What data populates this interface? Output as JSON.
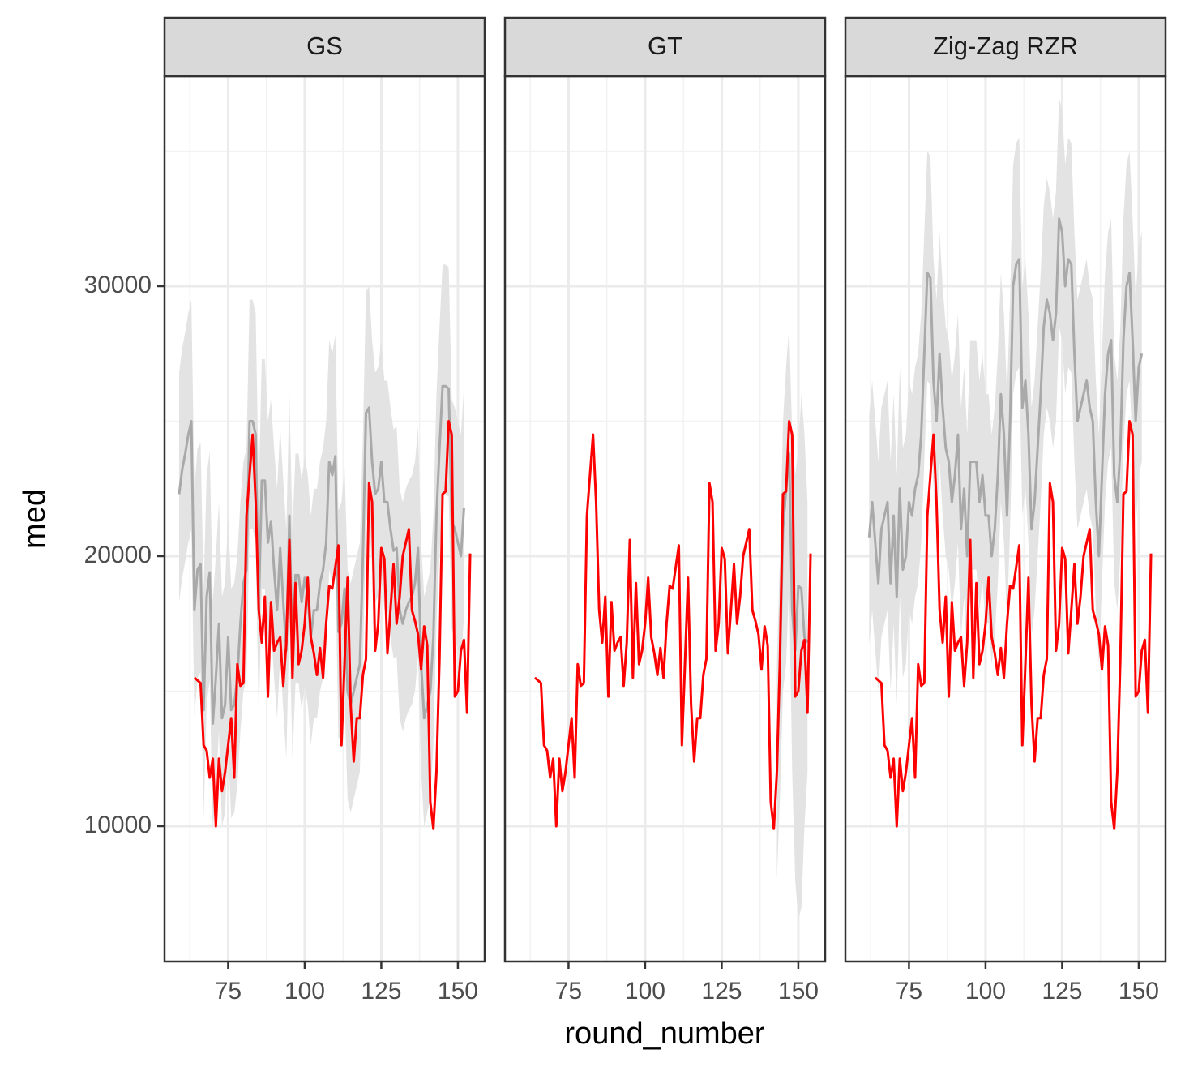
{
  "chart_data": {
    "type": "line",
    "x_label": "round_number",
    "y_label": "med",
    "xlim": [
      54.25,
      158.75
    ],
    "ylim": [
      4985,
      37778
    ],
    "xticks": [
      75,
      100,
      125,
      150
    ],
    "yticks": [
      10000,
      20000,
      30000
    ],
    "x_minor_grid": [
      62.5,
      87.5,
      112.5,
      137.5
    ],
    "y_minor_grid": [
      15000,
      25000,
      35000
    ],
    "grid": true,
    "ribbon_color": "#e3e3e3",
    "overlay": {
      "color": "#ff0000",
      "x": [
        64,
        65,
        66,
        67,
        68,
        69,
        70,
        71,
        72,
        73,
        74,
        75,
        76,
        77,
        78,
        79,
        80,
        81,
        82,
        83,
        84,
        85,
        86,
        87,
        88,
        89,
        90,
        91,
        92,
        93,
        94,
        95,
        96,
        97,
        98,
        99,
        100,
        101,
        102,
        103,
        104,
        105,
        106,
        107,
        108,
        109,
        110,
        111,
        112,
        113,
        114,
        115,
        116,
        117,
        118,
        119,
        120,
        121,
        122,
        123,
        124,
        125,
        126,
        127,
        128,
        129,
        130,
        131,
        132,
        133,
        134,
        135,
        136,
        137,
        138,
        139,
        140,
        141,
        142,
        143,
        144,
        145,
        146,
        147,
        148,
        149,
        150,
        151,
        152,
        153,
        154
      ],
      "values": [
        15500,
        15400,
        15300,
        13000,
        12800,
        11800,
        12500,
        10000,
        12500,
        11300,
        12000,
        13000,
        14000,
        11800,
        16000,
        15200,
        15300,
        21500,
        23000,
        24500,
        22000,
        18000,
        16800,
        18500,
        14800,
        18300,
        16500,
        16800,
        17000,
        15200,
        16800,
        20600,
        15500,
        19000,
        16000,
        16500,
        17500,
        19200,
        17000,
        16400,
        15600,
        16600,
        15500,
        17500,
        18900,
        18800,
        19600,
        20400,
        13000,
        16000,
        19200,
        14500,
        12400,
        14000,
        14000,
        15600,
        16200,
        22700,
        22000,
        16500,
        17500,
        20300,
        19900,
        16400,
        18000,
        19700,
        17500,
        18500,
        20000,
        20500,
        21000,
        18000,
        17600,
        17100,
        15800,
        17400,
        16700,
        10900,
        9900,
        12000,
        16200,
        22300,
        22400,
        25000,
        24500,
        14800,
        15000,
        16500,
        16900,
        14200,
        20100
      ]
    },
    "facets": [
      {
        "title": "GS",
        "color": "#a9a9a9",
        "x": [
          59,
          60,
          61,
          62,
          63,
          64,
          65,
          66,
          67,
          68,
          69,
          70,
          71,
          72,
          73,
          74,
          75,
          76,
          77,
          78,
          79,
          80,
          81,
          82,
          83,
          84,
          85,
          86,
          87,
          88,
          89,
          90,
          91,
          92,
          93,
          94,
          95,
          96,
          97,
          98,
          99,
          100,
          101,
          102,
          103,
          104,
          105,
          106,
          107,
          108,
          109,
          110,
          111,
          112,
          113,
          114,
          115,
          116,
          117,
          118,
          119,
          120,
          121,
          122,
          123,
          124,
          125,
          126,
          127,
          128,
          129,
          130,
          131,
          132,
          133,
          134,
          135,
          136,
          137,
          138,
          139,
          140,
          141,
          142,
          143,
          144,
          145,
          146,
          147,
          148,
          149,
          150,
          151,
          152
        ],
        "values": [
          22300,
          23200,
          23800,
          24500,
          25000,
          18000,
          19500,
          19700,
          14300,
          18500,
          19400,
          13800,
          15500,
          17500,
          14000,
          14500,
          17000,
          14300,
          14500,
          15500,
          17500,
          19000,
          19500,
          25000,
          25000,
          24500,
          18000,
          22800,
          22800,
          20500,
          21300,
          19500,
          18000,
          20300,
          18300,
          16500,
          21500,
          16500,
          19300,
          19300,
          18300,
          19200,
          18500,
          17000,
          18000,
          18000,
          19000,
          19500,
          20500,
          23500,
          23000,
          23700,
          17200,
          17500,
          18800,
          15000,
          14500,
          15000,
          15500,
          16000,
          20000,
          25300,
          25500,
          23500,
          22300,
          22500,
          23500,
          22000,
          22000,
          21000,
          20200,
          20300,
          18000,
          17500,
          18000,
          18300,
          18500,
          19000,
          20300,
          16000,
          14000,
          14500,
          15000,
          17000,
          21500,
          24000,
          26300,
          26300,
          26200,
          21300,
          21000,
          20500,
          20000,
          21800
        ],
        "lower": [
          18300,
          19200,
          19800,
          20500,
          21000,
          14000,
          15500,
          15700,
          10300,
          14500,
          15400,
          9800,
          11500,
          13500,
          10000,
          10500,
          13000,
          10300,
          10500,
          11500,
          13500,
          15000,
          15500,
          21000,
          21000,
          20500,
          14000,
          18800,
          18800,
          16500,
          17300,
          15500,
          14000,
          16300,
          14300,
          12500,
          17500,
          12500,
          15300,
          15300,
          14300,
          15200,
          14500,
          13000,
          14000,
          14000,
          15000,
          15500,
          16500,
          19500,
          19000,
          19700,
          13200,
          13500,
          14800,
          11000,
          10500,
          11000,
          11500,
          12000,
          16000,
          21300,
          21500,
          19500,
          18300,
          18500,
          19500,
          18000,
          18000,
          17000,
          16200,
          16300,
          14000,
          13500,
          14000,
          14300,
          14500,
          15000,
          16300,
          12000,
          10000,
          10500,
          11000,
          13000,
          17500,
          20000,
          22300,
          22300,
          22200,
          17300,
          17000,
          16500,
          16000,
          17800
        ],
        "upper": [
          26800,
          27700,
          28300,
          29000,
          29500,
          22500,
          24000,
          24200,
          18800,
          23000,
          23900,
          18300,
          20000,
          22000,
          18500,
          19000,
          21500,
          18800,
          19000,
          20000,
          22000,
          23500,
          24000,
          29500,
          29500,
          29000,
          22500,
          27300,
          27300,
          25000,
          25800,
          24000,
          22500,
          24800,
          22800,
          21000,
          26000,
          21000,
          23800,
          23800,
          22800,
          23700,
          23000,
          21500,
          22500,
          22500,
          23500,
          24000,
          25000,
          28000,
          27500,
          28200,
          21700,
          22000,
          23300,
          19500,
          19000,
          19500,
          20000,
          20500,
          24500,
          29800,
          30000,
          28000,
          26800,
          27000,
          28000,
          26500,
          26500,
          25500,
          24700,
          24800,
          22500,
          22000,
          22500,
          22800,
          23000,
          23500,
          24800,
          20500,
          18500,
          19000,
          19500,
          21500,
          26000,
          28500,
          30800,
          30800,
          30700,
          25800,
          25500,
          25000,
          24500,
          26300
        ]
      },
      {
        "title": "GT",
        "color": "#a9a9a9",
        "x": [
          143,
          144,
          145,
          146,
          147,
          148,
          149,
          150,
          151,
          152,
          153
        ],
        "values": [
          12000,
          16000,
          21000,
          22500,
          23800,
          18000,
          16500,
          18900,
          18800,
          17000,
          16800
        ],
        "lower": [
          8000,
          11000,
          15000,
          16000,
          19000,
          12000,
          8000,
          6500,
          7000,
          10000,
          12000
        ],
        "upper": [
          16000,
          20000,
          25000,
          27000,
          28500,
          24500,
          23000,
          24000,
          26000,
          24500,
          22000
        ]
      },
      {
        "title": "Zig-Zag RZR",
        "color": "#a9a9a9",
        "x": [
          62,
          63,
          64,
          65,
          66,
          67,
          68,
          69,
          70,
          71,
          72,
          73,
          74,
          75,
          76,
          77,
          78,
          79,
          80,
          81,
          82,
          83,
          84,
          85,
          86,
          87,
          88,
          89,
          90,
          91,
          92,
          93,
          94,
          95,
          96,
          97,
          98,
          99,
          100,
          101,
          102,
          103,
          104,
          105,
          106,
          107,
          108,
          109,
          110,
          111,
          112,
          113,
          114,
          115,
          116,
          117,
          118,
          119,
          120,
          121,
          122,
          123,
          124,
          125,
          126,
          127,
          128,
          129,
          130,
          131,
          132,
          133,
          134,
          135,
          136,
          137,
          138,
          139,
          140,
          141,
          142,
          143,
          144,
          145,
          146,
          147,
          148,
          149,
          150,
          151
        ],
        "values": [
          20700,
          22000,
          20500,
          19000,
          21000,
          21500,
          22000,
          19000,
          21500,
          18500,
          22500,
          19500,
          20000,
          22000,
          21500,
          22500,
          23000,
          24500,
          27500,
          30500,
          30300,
          26500,
          25000,
          27500,
          25500,
          24000,
          23500,
          22000,
          23000,
          24500,
          21000,
          22500,
          20000,
          23500,
          23500,
          23500,
          22000,
          23000,
          21500,
          21500,
          20000,
          21000,
          23000,
          26000,
          24500,
          21500,
          25000,
          30000,
          30800,
          31000,
          25500,
          26500,
          24500,
          21000,
          22000,
          24000,
          26000,
          28500,
          29500,
          29000,
          28000,
          29000,
          32500,
          32000,
          30000,
          31000,
          30800,
          27500,
          25000,
          25500,
          26000,
          26500,
          25500,
          25000,
          22000,
          20000,
          23000,
          26000,
          27500,
          28000,
          23000,
          22000,
          24000,
          28000,
          30000,
          30500,
          28000,
          25000,
          27000,
          27500
        ],
        "lower": [
          16700,
          18000,
          16500,
          15000,
          17000,
          17500,
          18000,
          15000,
          17500,
          14500,
          18500,
          15500,
          16000,
          18000,
          17500,
          18500,
          19000,
          20500,
          23500,
          26500,
          26300,
          22500,
          21000,
          23500,
          21500,
          20000,
          19500,
          18000,
          19000,
          20500,
          17000,
          18500,
          16000,
          19500,
          19500,
          19500,
          18000,
          19000,
          17500,
          17500,
          16000,
          17000,
          19000,
          22000,
          20500,
          17500,
          21000,
          26000,
          26800,
          27000,
          21500,
          22500,
          20500,
          17000,
          18000,
          20000,
          22000,
          24500,
          25500,
          25000,
          24000,
          25000,
          28500,
          28000,
          26000,
          27000,
          26800,
          23500,
          21000,
          21500,
          22000,
          22500,
          21500,
          21000,
          18000,
          16000,
          19000,
          22000,
          23500,
          24000,
          19000,
          18000,
          20000,
          24000,
          26000,
          26500,
          24000,
          21000,
          23000,
          23500
        ],
        "upper": [
          25200,
          26500,
          25000,
          23500,
          25500,
          26000,
          26500,
          23500,
          26000,
          23000,
          27000,
          24000,
          24500,
          26500,
          26000,
          27000,
          27500,
          29000,
          32000,
          35000,
          34800,
          31000,
          29500,
          32000,
          30000,
          28500,
          28000,
          26500,
          27500,
          29000,
          25500,
          27000,
          24500,
          28000,
          28000,
          28000,
          26500,
          27500,
          26000,
          26000,
          24500,
          25500,
          27500,
          30500,
          29000,
          26000,
          29500,
          34500,
          35300,
          35500,
          30000,
          31000,
          29000,
          25500,
          26500,
          28500,
          30500,
          33000,
          34000,
          33500,
          32500,
          33500,
          37000,
          36500,
          34500,
          35500,
          35300,
          32000,
          29500,
          30000,
          30500,
          31000,
          30000,
          29500,
          26500,
          24500,
          27500,
          30500,
          32000,
          32500,
          27500,
          26500,
          28500,
          32500,
          34500,
          35000,
          32500,
          29500,
          31500,
          32000
        ]
      }
    ]
  }
}
